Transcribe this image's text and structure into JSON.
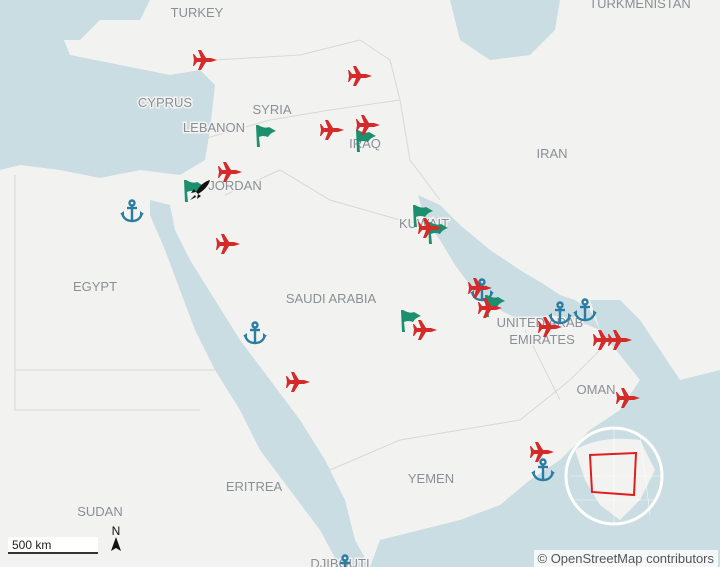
{
  "map": {
    "country_labels": [
      {
        "id": "turkey",
        "text": "TURKEY"
      },
      {
        "id": "turkmenistan",
        "text": "TURKMENISTAN"
      },
      {
        "id": "cyprus",
        "text": "CYPRUS"
      },
      {
        "id": "syria",
        "text": "SYRIA"
      },
      {
        "id": "lebanon",
        "text": "LEBANON"
      },
      {
        "id": "iraq",
        "text": "IRAQ"
      },
      {
        "id": "iran",
        "text": "IRAN"
      },
      {
        "id": "jordan",
        "text": "JORDAN"
      },
      {
        "id": "kuwait",
        "text": "KUWAIT"
      },
      {
        "id": "egypt",
        "text": "EGYPT"
      },
      {
        "id": "saudi",
        "text": "SAUDI ARABIA"
      },
      {
        "id": "uae1",
        "text": "UNITED ARAB"
      },
      {
        "id": "uae2",
        "text": "EMIRATES"
      },
      {
        "id": "oman",
        "text": "OMAN"
      },
      {
        "id": "yemen",
        "text": "YEMEN"
      },
      {
        "id": "eritrea",
        "text": "ERITREA"
      },
      {
        "id": "sudan",
        "text": "SUDAN"
      },
      {
        "id": "djibouti",
        "text": "DJIBOUTI"
      }
    ],
    "marker_types": {
      "jet": "fighter-jet-icon",
      "flag": "flag-icon",
      "anchor": "anchor-icon",
      "rocket": "rocket-icon"
    },
    "colors": {
      "jet": "#d42a2a",
      "flag": "#1c8f6e",
      "anchor": "#2a7ca3",
      "rocket": "#111111",
      "water": "#c9dde2",
      "land": "#f2f2f0",
      "inset_box": "#e01e1e"
    },
    "scale_label": "500 km",
    "north_label": "N",
    "attribution": "© OpenStreetMap contributors"
  }
}
